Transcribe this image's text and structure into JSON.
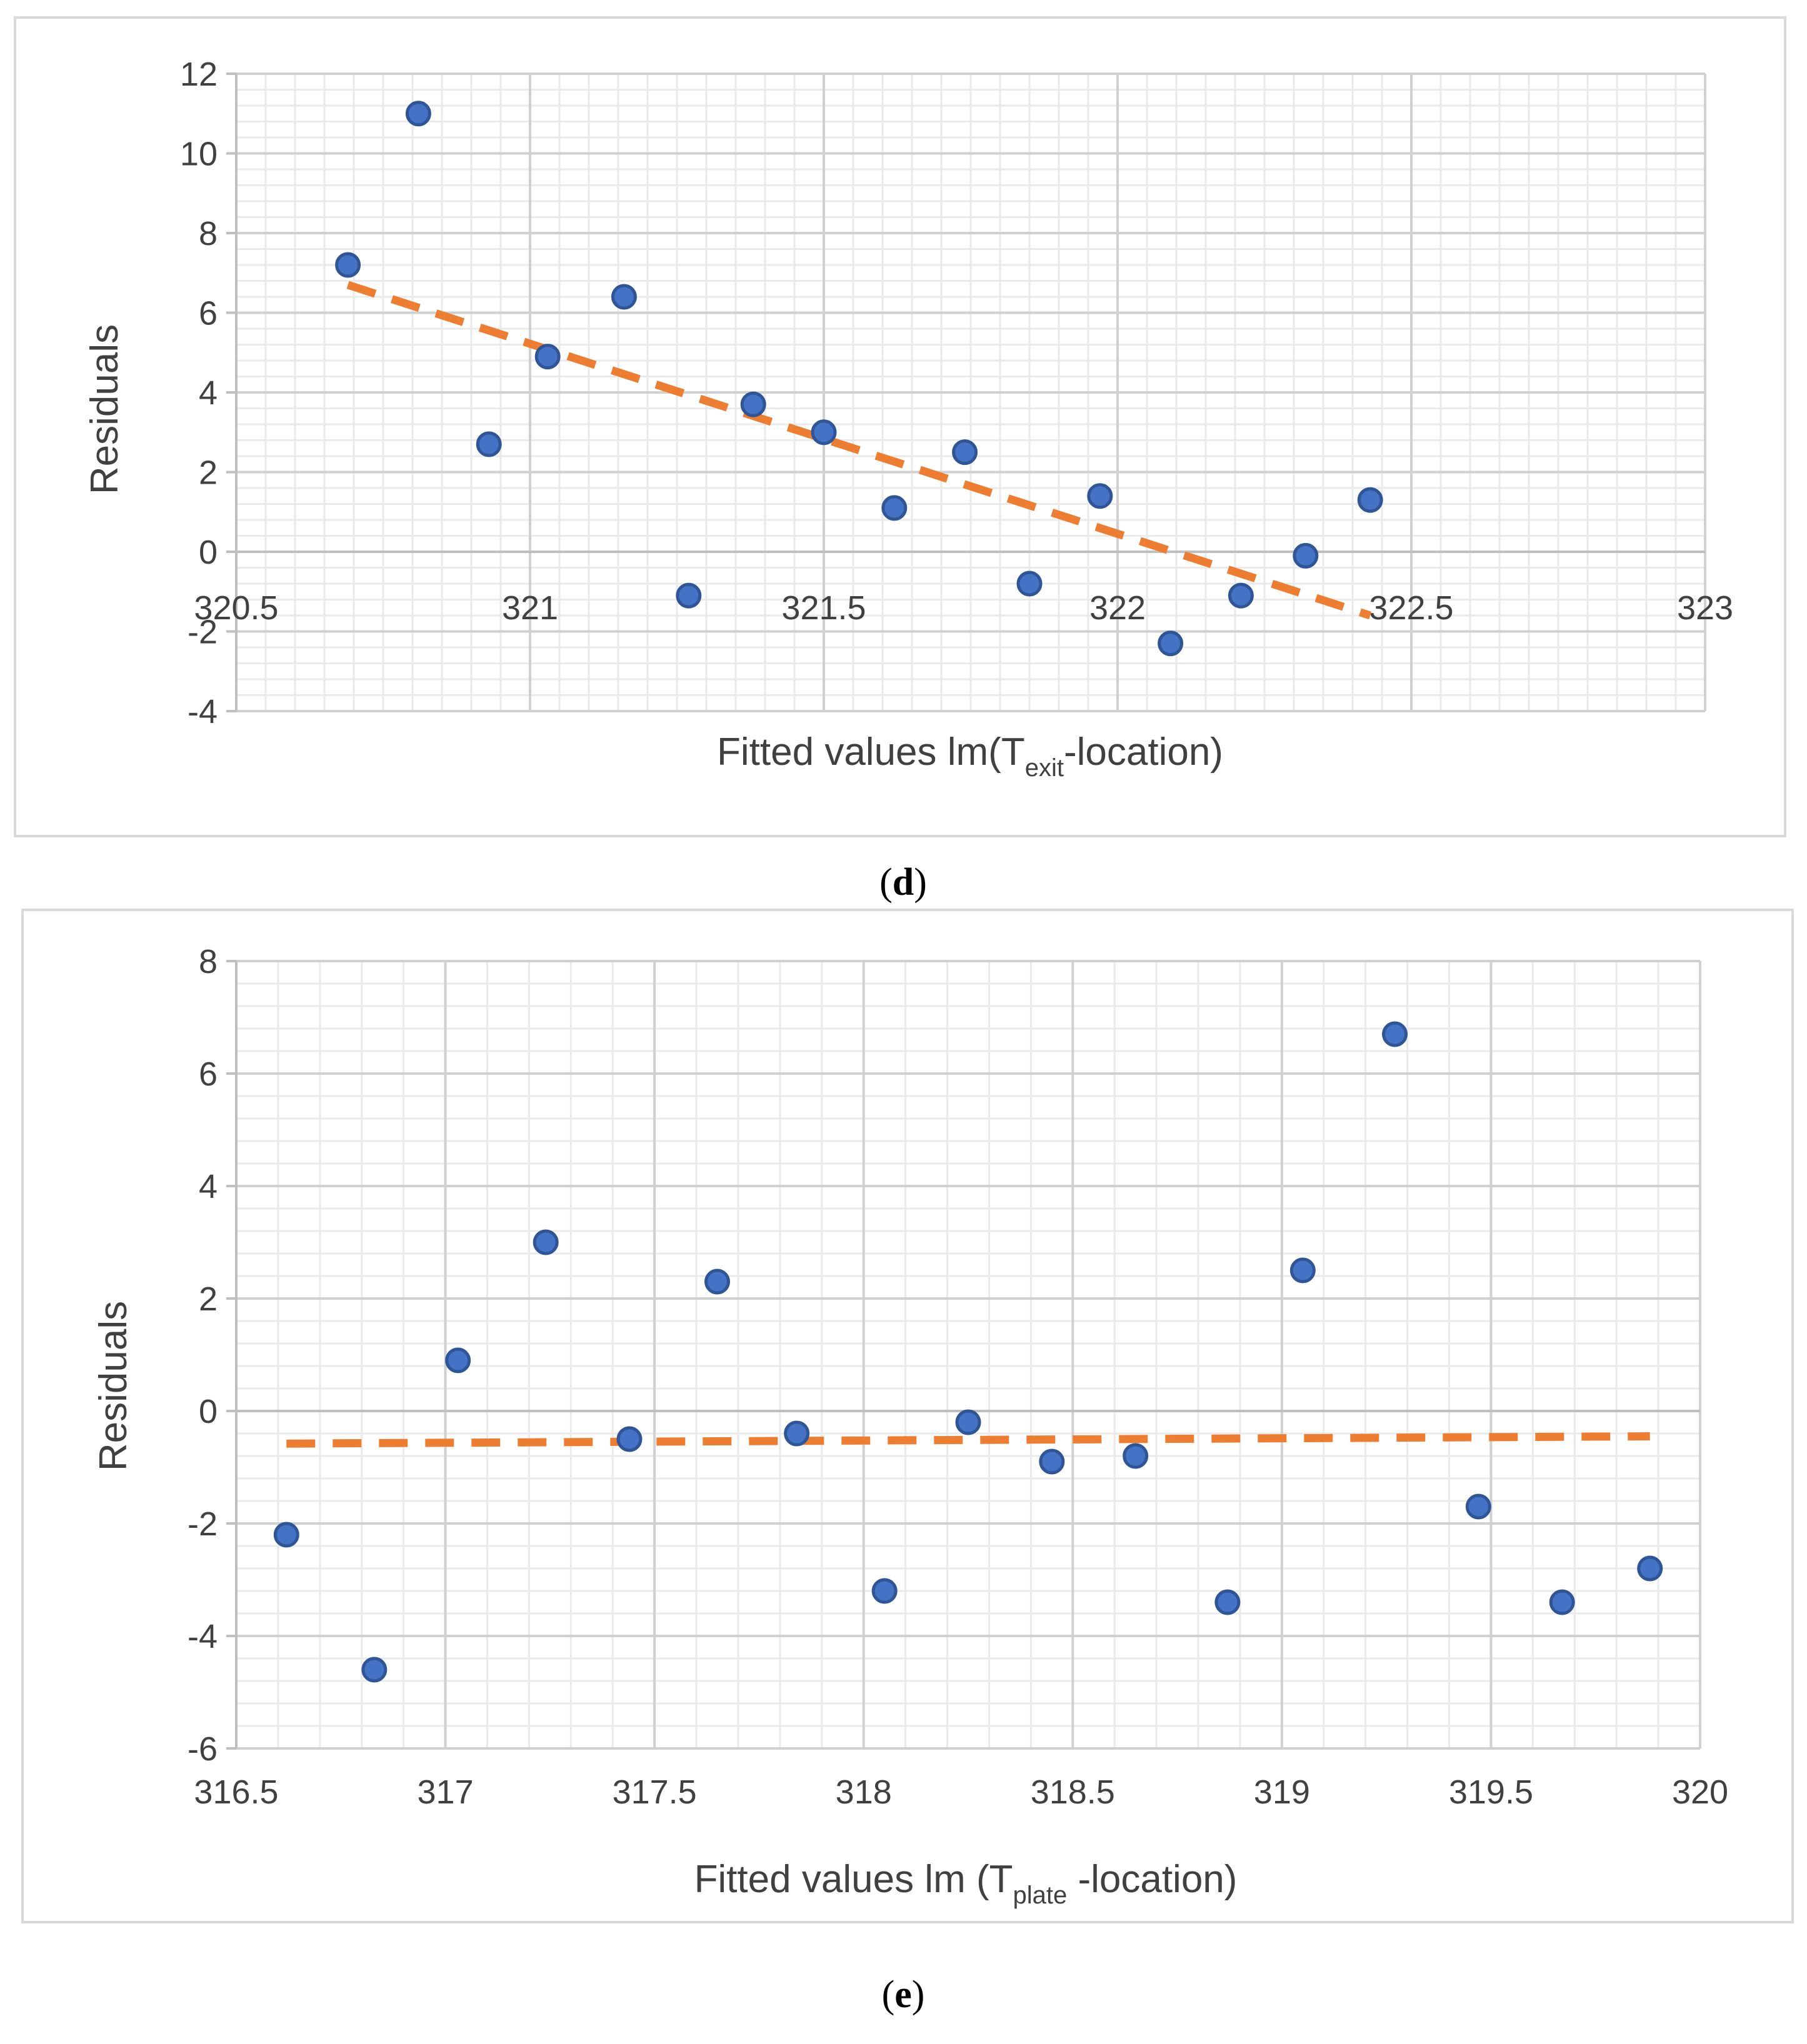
{
  "chart_data": [
    {
      "type": "scatter",
      "caption_letter": "d",
      "xlabel_prefix": "Fitted values lm(T",
      "xlabel_sub": "exit",
      "xlabel_suffix": "-location)",
      "ylabel": "Residuals",
      "xlim": [
        320.5,
        323
      ],
      "ylim": [
        -4,
        12
      ],
      "xticks": [
        320.5,
        321,
        321.5,
        322,
        322.5,
        323
      ],
      "xtick_labels": [
        "320.5",
        "321",
        "321.5",
        "322",
        "322.5",
        "323"
      ],
      "yticks": [
        -4,
        -2,
        0,
        2,
        4,
        6,
        8,
        10,
        12
      ],
      "ytick_labels": [
        "-4",
        "-2",
        "0",
        "2",
        "4",
        "6",
        "8",
        "10",
        "12"
      ],
      "x_axis_crosses_at_zero": true,
      "points": {
        "x": [
          320.69,
          320.81,
          320.93,
          321.03,
          321.16,
          321.27,
          321.38,
          321.5,
          321.62,
          321.74,
          321.85,
          321.97,
          322.09,
          322.21,
          322.32,
          322.43
        ],
        "y": [
          7.2,
          11.0,
          2.7,
          4.9,
          6.4,
          -1.1,
          3.7,
          3.0,
          1.1,
          2.5,
          -0.8,
          1.4,
          -2.3,
          -1.1,
          -0.1,
          1.3
        ]
      },
      "trendline": {
        "x": [
          320.69,
          322.43
        ],
        "y": [
          6.7,
          -1.6
        ]
      },
      "colors": {
        "points": "#4472C4",
        "point_edge": "#2F5597",
        "trendline": "#ED7D31",
        "major_grid": "#D0D0D0",
        "minor_grid": "#EAEAEA",
        "axis": "#BFBFBF"
      }
    },
    {
      "type": "scatter",
      "caption_letter": "e",
      "xlabel_prefix": "Fitted values lm (T",
      "xlabel_sub": "plate",
      "xlabel_suffix": " -location)",
      "ylabel": "Residuals",
      "xlim": [
        316.5,
        320
      ],
      "ylim": [
        -6,
        8
      ],
      "xticks": [
        316.5,
        317,
        317.5,
        318,
        318.5,
        319,
        319.5,
        320
      ],
      "xtick_labels": [
        "316.5",
        "317",
        "317.5",
        "318",
        "318.5",
        "319",
        "319.5",
        "320"
      ],
      "yticks": [
        -6,
        -4,
        -2,
        0,
        2,
        4,
        6,
        8
      ],
      "ytick_labels": [
        "-6",
        "-4",
        "-2",
        "0",
        "2",
        "4",
        "6",
        "8"
      ],
      "x_axis_crosses_at_zero": false,
      "points": {
        "x": [
          316.62,
          316.83,
          317.03,
          317.24,
          317.44,
          317.65,
          317.84,
          318.05,
          318.25,
          318.45,
          318.65,
          318.87,
          319.05,
          319.27,
          319.47,
          319.67,
          319.88
        ],
        "y": [
          -2.2,
          -4.6,
          0.9,
          3.0,
          -0.5,
          2.3,
          -0.4,
          -3.2,
          -0.2,
          -0.9,
          -0.8,
          -3.4,
          2.5,
          6.7,
          -1.7,
          -3.4,
          -2.8
        ]
      },
      "trendline": {
        "x": [
          316.62,
          319.88
        ],
        "y": [
          -0.58,
          -0.45
        ]
      },
      "colors": {
        "points": "#4472C4",
        "point_edge": "#2F5597",
        "trendline": "#ED7D31",
        "major_grid": "#D0D0D0",
        "minor_grid": "#EAEAEA",
        "axis": "#BFBFBF"
      }
    }
  ]
}
